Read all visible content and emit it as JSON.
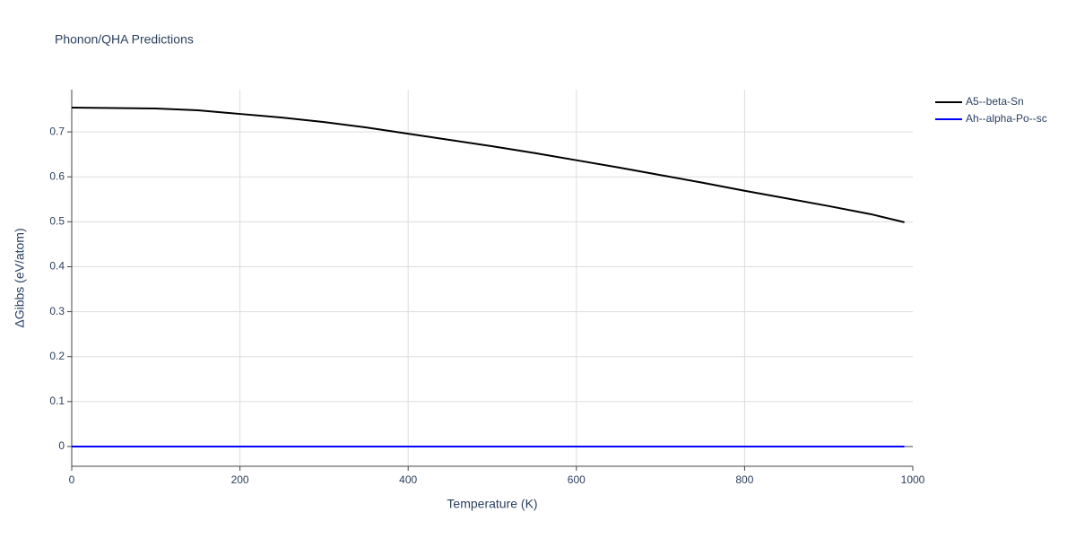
{
  "chart_data": {
    "type": "line",
    "title": "Phonon/QHA Predictions",
    "x_label": "Temperature (K)",
    "y_label": "ΔGibbs (eV/atom)",
    "x": [
      0,
      50,
      100,
      150,
      200,
      250,
      300,
      350,
      400,
      450,
      500,
      550,
      600,
      650,
      700,
      750,
      800,
      850,
      900,
      950,
      990
    ],
    "series": [
      {
        "name": "A5--beta-Sn",
        "color": "#000000",
        "values": [
          0.754,
          0.753,
          0.752,
          0.748,
          0.74,
          0.732,
          0.722,
          0.71,
          0.696,
          0.682,
          0.668,
          0.653,
          0.637,
          0.621,
          0.604,
          0.587,
          0.569,
          0.552,
          0.535,
          0.517,
          0.499
        ]
      },
      {
        "name": "Ah--alpha-Po--sc",
        "color": "#0000ff",
        "values": [
          0,
          0,
          0,
          0,
          0,
          0,
          0,
          0,
          0,
          0,
          0,
          0,
          0,
          0,
          0,
          0,
          0,
          0,
          0,
          0,
          0
        ]
      }
    ],
    "xlim": [
      0,
      1000
    ],
    "xticks": [
      0,
      200,
      400,
      600,
      800,
      1000
    ],
    "ylim": [
      -0.044,
      0.794
    ],
    "yticks": [
      0,
      0.1,
      0.2,
      0.3,
      0.4,
      0.5,
      0.6,
      0.7
    ],
    "grid": true,
    "legend": "outside-right-top"
  }
}
